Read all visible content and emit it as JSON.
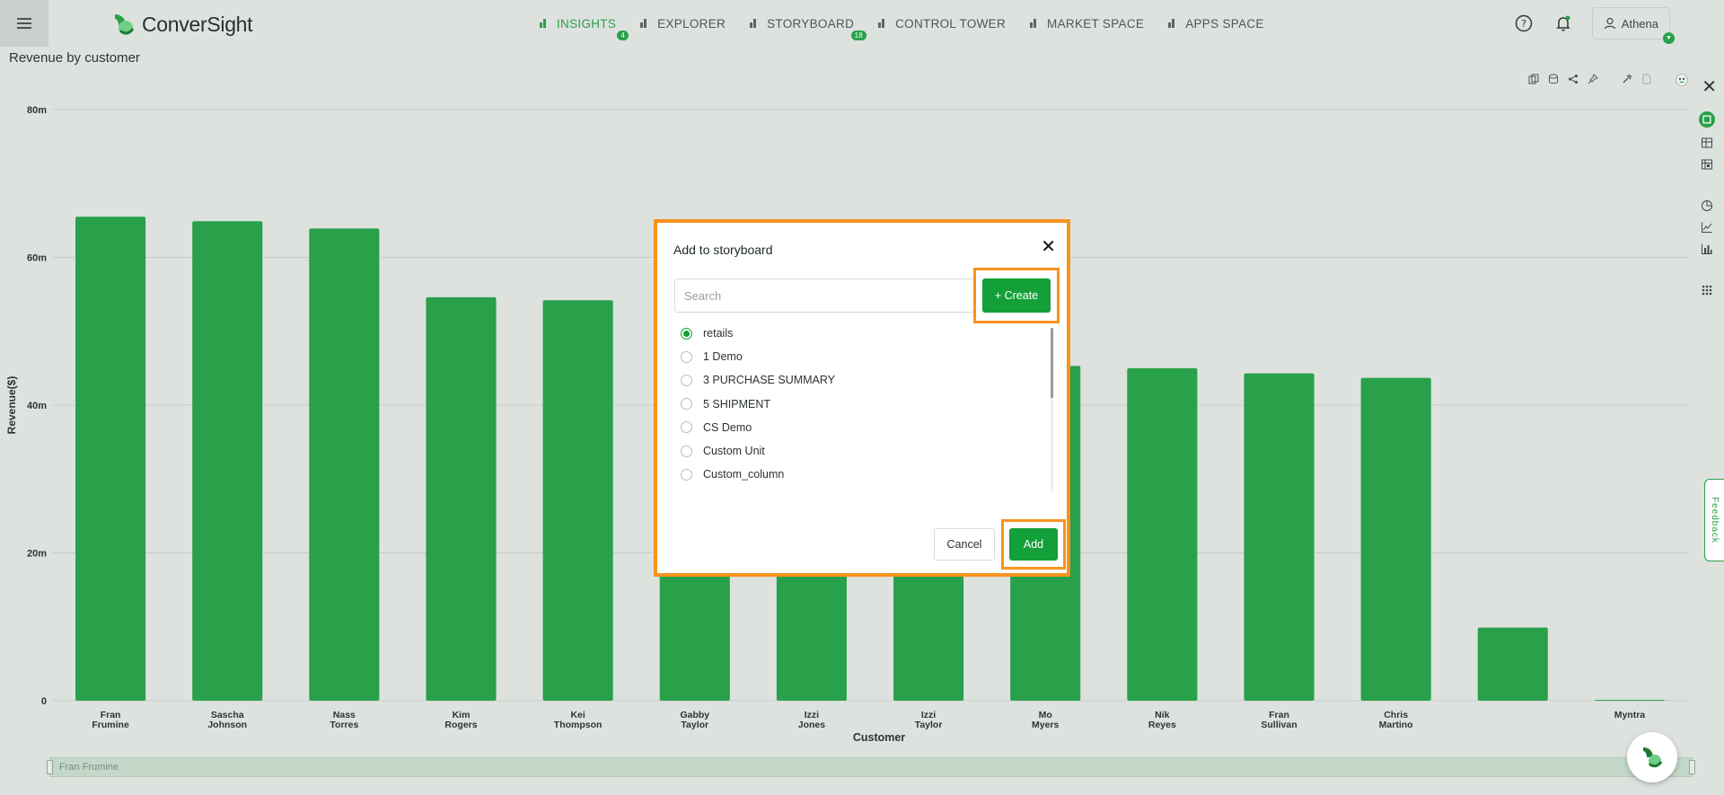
{
  "app": {
    "brand": "ConverSight",
    "accent": "#29a04a"
  },
  "nav": [
    {
      "label": "INSIGHTS",
      "badge": "4",
      "icon": "bar-chart-icon",
      "active": true
    },
    {
      "label": "EXPLORER",
      "badge": "",
      "icon": "explorer-icon",
      "active": false
    },
    {
      "label": "STORYBOARD",
      "badge": "18",
      "icon": "storyboard-icon",
      "active": false
    },
    {
      "label": "CONTROL TOWER",
      "badge": "",
      "icon": "control-tower-icon",
      "active": false
    },
    {
      "label": "MARKET SPACE",
      "badge": "",
      "icon": "market-space-icon",
      "active": false
    },
    {
      "label": "APPS SPACE",
      "badge": "",
      "icon": "apps-space-icon",
      "active": false
    }
  ],
  "header": {
    "user": "Athena"
  },
  "page": {
    "title": "Revenue by customer",
    "feedback_label": "Feedback",
    "slider_label": "Fran Frumine"
  },
  "chart_data": {
    "type": "bar",
    "title": "",
    "xlabel": "Customer",
    "ylabel": "Revenue($)",
    "ylim": [
      0,
      80
    ],
    "yticks": [
      "0",
      "20m",
      "40m",
      "60m",
      "80m"
    ],
    "ytick_values": [
      0,
      20,
      40,
      60,
      80
    ],
    "categories": [
      [
        "Fran",
        "Frumine"
      ],
      [
        "Sascha",
        "Johnson"
      ],
      [
        "Nass",
        "Torres"
      ],
      [
        "Kim",
        "Rogers"
      ],
      [
        "Kei",
        "Thompson"
      ],
      [
        "Gabby",
        "Taylor"
      ],
      [
        "Izzi",
        "Jones"
      ],
      [
        "Izzi",
        "Taylor"
      ],
      [
        "Mo",
        "Myers"
      ],
      [
        "Nik",
        "Reyes"
      ],
      [
        "Fran",
        "Sullivan"
      ],
      [
        "Chris",
        "Martino"
      ],
      [
        "",
        ""
      ],
      [
        "Myntra",
        ""
      ]
    ],
    "values": [
      65.5,
      64.9,
      63.9,
      54.6,
      54.2,
      45.5,
      45.4,
      45.3,
      45.3,
      45.0,
      44.3,
      43.7,
      9.9,
      0.1
    ],
    "bar_color": "#29a04a"
  },
  "modal": {
    "title": "Add to storyboard",
    "search_placeholder": "Search",
    "create_label": "+ Create",
    "items": [
      {
        "label": "retails",
        "checked": true
      },
      {
        "label": "1 Demo",
        "checked": false
      },
      {
        "label": "3 PURCHASE SUMMARY",
        "checked": false
      },
      {
        "label": "5 SHIPMENT",
        "checked": false
      },
      {
        "label": "CS Demo",
        "checked": false
      },
      {
        "label": "Custom Unit",
        "checked": false
      },
      {
        "label": "Custom_column",
        "checked": false
      }
    ],
    "cancel_label": "Cancel",
    "add_label": "Add",
    "highlight_color": "#f7931e"
  }
}
